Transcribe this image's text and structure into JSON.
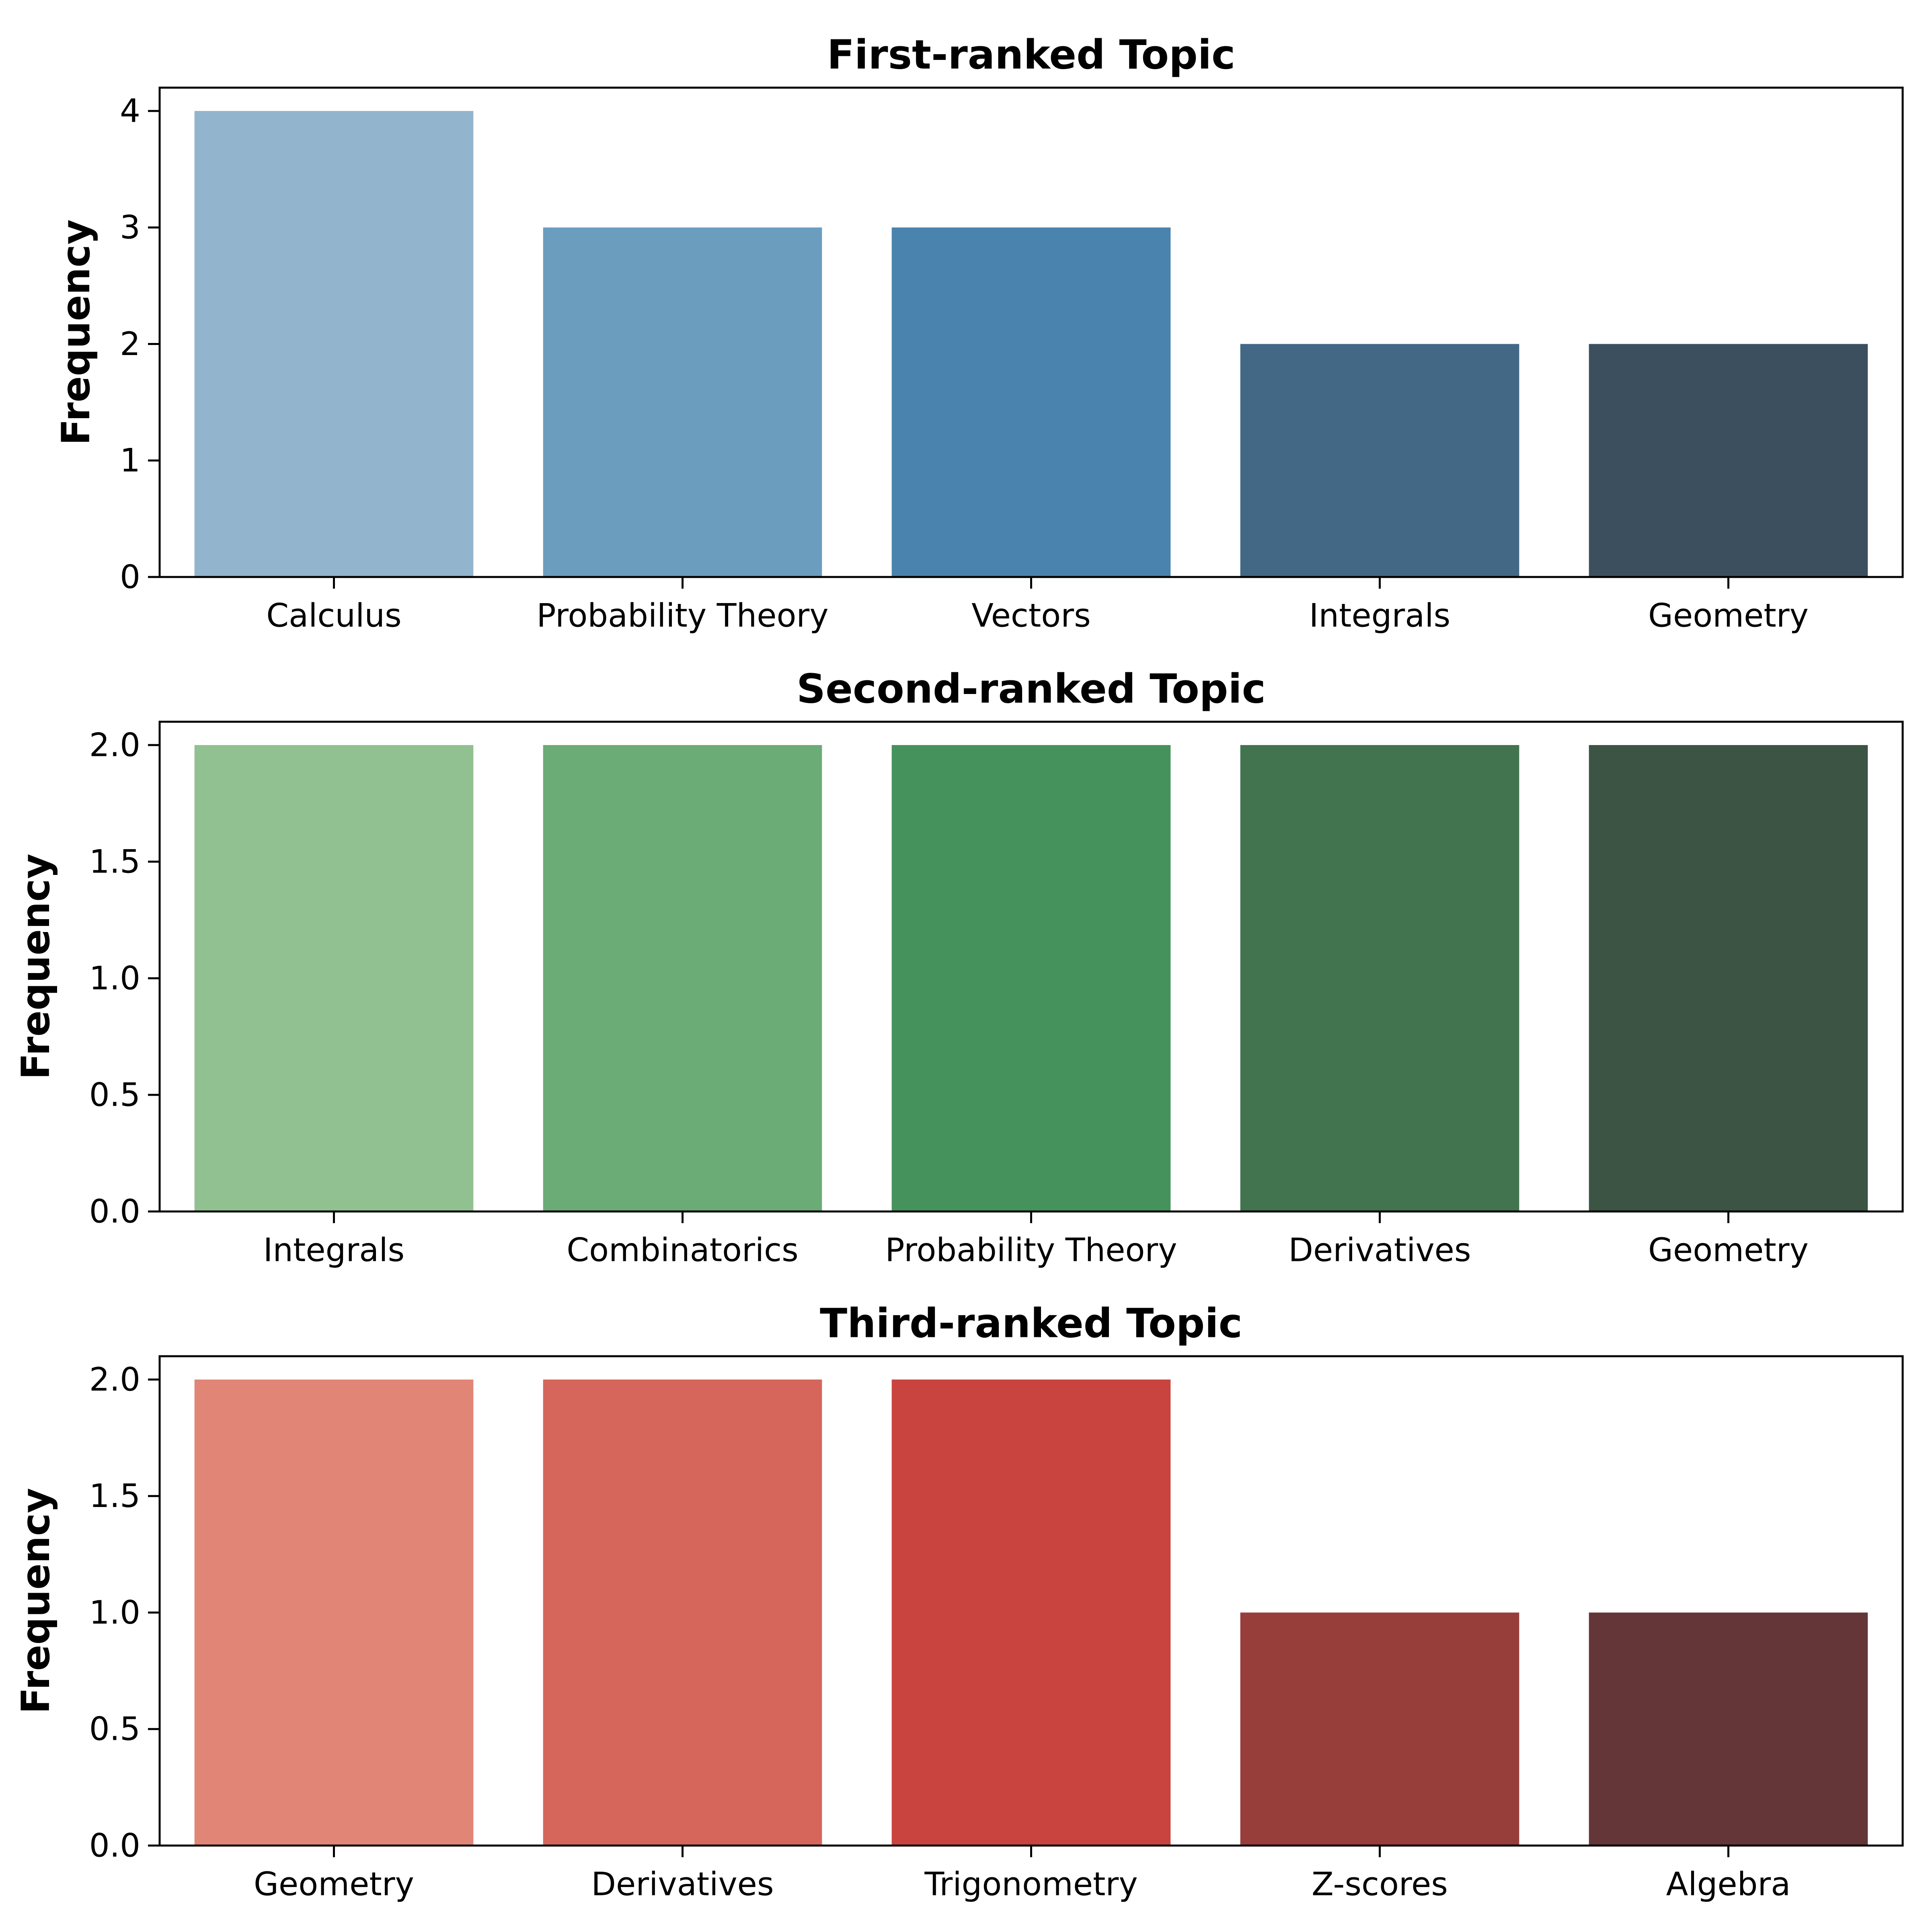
{
  "chart_data": [
    {
      "type": "bar",
      "title": "First-ranked Topic",
      "xlabel": "",
      "ylabel": "Frequency",
      "categories": [
        "Calculus",
        "Probability Theory",
        "Vectors",
        "Integrals",
        "Geometry"
      ],
      "values": [
        4,
        3,
        3,
        2,
        2
      ],
      "colors": [
        "#92b5cd",
        "#6b9dbf",
        "#4a83ae",
        "#426886",
        "#3b4f5f"
      ],
      "ylim": [
        0,
        4.2
      ],
      "yticks": [
        0,
        1,
        2,
        3,
        4
      ],
      "ytick_labels": [
        "0",
        "1",
        "2",
        "3",
        "4"
      ],
      "grid": false
    },
    {
      "type": "bar",
      "title": "Second-ranked Topic",
      "xlabel": "",
      "ylabel": "Frequency",
      "categories": [
        "Integrals",
        "Combinatorics",
        "Probability Theory",
        "Derivatives",
        "Geometry"
      ],
      "values": [
        2,
        2,
        2,
        2,
        2
      ],
      "colors": [
        "#91c190",
        "#6bab76",
        "#46925c",
        "#42744f",
        "#3b5444"
      ],
      "ylim": [
        0,
        2.1
      ],
      "yticks": [
        0,
        0.5,
        1,
        1.5,
        2
      ],
      "ytick_labels": [
        "0.0",
        "0.5",
        "1.0",
        "1.5",
        "2.0"
      ],
      "grid": false
    },
    {
      "type": "bar",
      "title": "Third-ranked Topic",
      "xlabel": "",
      "ylabel": "Frequency",
      "categories": [
        "Geometry",
        "Derivatives",
        "Trigonometry",
        "Z-scores",
        "Algebra"
      ],
      "values": [
        2,
        2,
        2,
        1,
        1
      ],
      "colors": [
        "#e18676",
        "#d6665c",
        "#c9443f",
        "#973e3b",
        "#643638"
      ],
      "ylim": [
        0,
        2.1
      ],
      "yticks": [
        0,
        0.5,
        1,
        1.5,
        2
      ],
      "ytick_labels": [
        "0.0",
        "0.5",
        "1.0",
        "1.5",
        "2.0"
      ],
      "grid": false
    }
  ]
}
